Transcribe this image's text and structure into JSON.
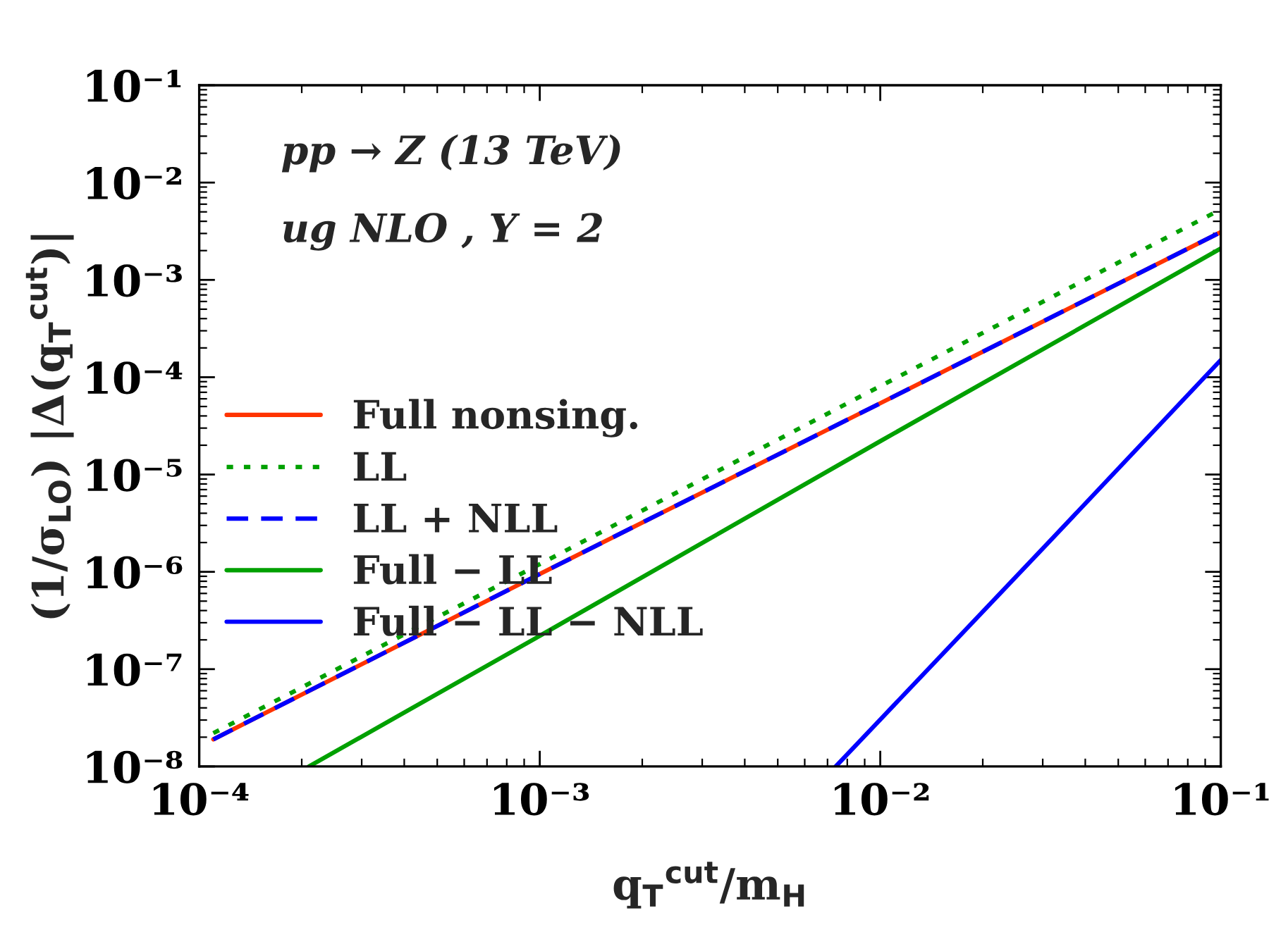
{
  "chart_data": {
    "type": "line",
    "xlabel": "q$_{T}$$^{cut}$/m$_{H}$",
    "ylabel": "(1/σ$_{LO}$) |Δ(q$_{T}$$^{cut}$)|",
    "log": "xy",
    "xlim": [
      0.0001,
      0.1
    ],
    "ylim": [
      1e-08,
      0.1
    ],
    "xticks": [
      {
        "value": 0.0001,
        "label": "10⁻⁴"
      },
      {
        "value": 0.001,
        "label": "10⁻³"
      },
      {
        "value": 0.01,
        "label": "10⁻²"
      },
      {
        "value": 0.1,
        "label": "10⁻¹"
      }
    ],
    "yticks": [
      {
        "value": 1e-08,
        "label": "10⁻⁸"
      },
      {
        "value": 1e-07,
        "label": "10⁻⁷"
      },
      {
        "value": 1e-06,
        "label": "10⁻⁶"
      },
      {
        "value": 1e-05,
        "label": "10⁻⁵"
      },
      {
        "value": 0.0001,
        "label": "10⁻⁴"
      },
      {
        "value": 0.001,
        "label": "10⁻³"
      },
      {
        "value": 0.01,
        "label": "10⁻²"
      },
      {
        "value": 0.1,
        "label": "10⁻¹"
      }
    ],
    "annotations": [
      "pp → Z (13 TeV)",
      "ug NLO , Y = 2"
    ],
    "legend": "center left",
    "series": [
      {
        "name": "Full nonsing.",
        "color": "#ff3300",
        "line_style": "solid",
        "x": [
          0.00011,
          0.001,
          0.01,
          0.1
        ],
        "values": [
          1.9e-08,
          9.5e-07,
          5.4e-05,
          0.0031
        ]
      },
      {
        "name": "LL",
        "color": "#00a000",
        "line_style": "dotted",
        "x": [
          0.00011,
          0.001,
          0.01,
          0.1
        ],
        "values": [
          2.2e-08,
          1.2e-06,
          8.1e-05,
          0.0053
        ]
      },
      {
        "name": "LL + NLL",
        "color": "#0000ff",
        "line_style": "dashed",
        "x": [
          0.00011,
          0.001,
          0.01,
          0.1
        ],
        "values": [
          1.9e-08,
          9.5e-07,
          5.4e-05,
          0.0031
        ]
      },
      {
        "name": "Full − LL",
        "color": "#00a000",
        "line_style": "solid",
        "x": [
          0.00021,
          0.001,
          0.01,
          0.1
        ],
        "values": [
          1e-08,
          2.2e-07,
          2.2e-05,
          0.0021
        ]
      },
      {
        "name": "Full − LL − NLL",
        "color": "#0000ff",
        "line_style": "solid",
        "x": [
          0.0074,
          0.032,
          0.1
        ],
        "values": [
          1e-08,
          2.2e-06,
          0.00015
        ]
      }
    ]
  }
}
